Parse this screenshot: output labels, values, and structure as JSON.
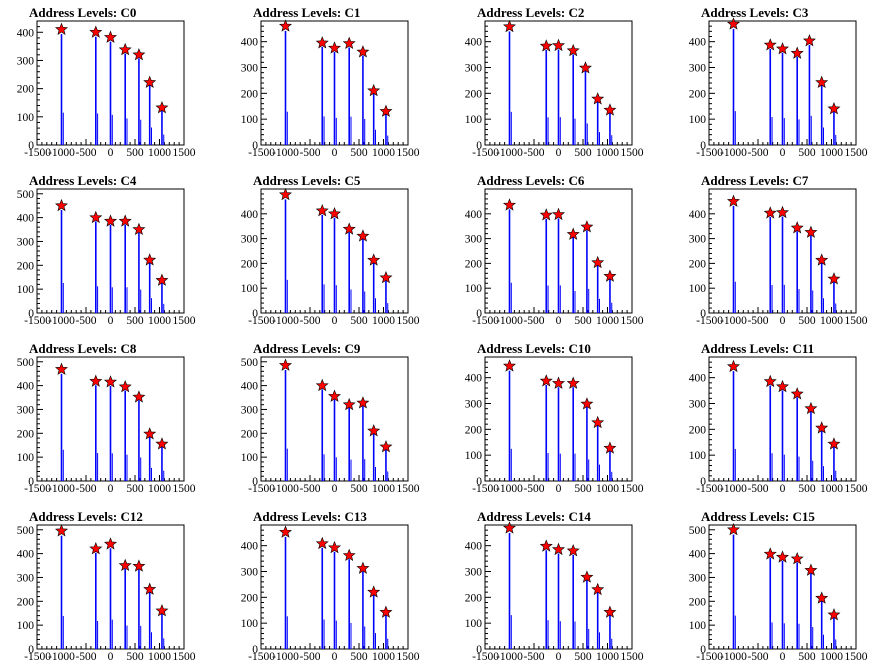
{
  "chart_data": [
    {
      "title": "Address Levels: C0",
      "type": "bar",
      "xlim": [
        -1500,
        1500
      ],
      "ylim": [
        0,
        440
      ],
      "xticks": [
        "-1500",
        "-1000",
        "-500",
        "0",
        "500",
        "1000",
        "1500"
      ],
      "yticks": [
        "0",
        "100",
        "200",
        "300",
        "400"
      ],
      "peaks": [
        {
          "x": -1000,
          "y": 410
        },
        {
          "x": -300,
          "y": 400
        },
        {
          "x": 0,
          "y": 382
        },
        {
          "x": 300,
          "y": 338
        },
        {
          "x": 580,
          "y": 320
        },
        {
          "x": 800,
          "y": 222
        },
        {
          "x": 1050,
          "y": 132
        }
      ]
    },
    {
      "title": "Address Levels: C1",
      "type": "bar",
      "xlim": [
        -1500,
        1500
      ],
      "ylim": [
        0,
        480
      ],
      "xticks": [
        "-1500",
        "-1000",
        "-500",
        "0",
        "500",
        "1000",
        "1500"
      ],
      "yticks": [
        "0",
        "100",
        "200",
        "300",
        "400"
      ],
      "peaks": [
        {
          "x": -1000,
          "y": 460
        },
        {
          "x": -250,
          "y": 395
        },
        {
          "x": 0,
          "y": 375
        },
        {
          "x": 300,
          "y": 393
        },
        {
          "x": 580,
          "y": 360
        },
        {
          "x": 800,
          "y": 210
        },
        {
          "x": 1050,
          "y": 130
        }
      ]
    },
    {
      "title": "Address Levels: C2",
      "type": "bar",
      "xlim": [
        -1500,
        1500
      ],
      "ylim": [
        0,
        480
      ],
      "xticks": [
        "-1500",
        "-1000",
        "-500",
        "0",
        "500",
        "1000",
        "1500"
      ],
      "yticks": [
        "0",
        "100",
        "200",
        "300",
        "400"
      ],
      "peaks": [
        {
          "x": -1000,
          "y": 458
        },
        {
          "x": -250,
          "y": 383
        },
        {
          "x": 0,
          "y": 385
        },
        {
          "x": 300,
          "y": 365
        },
        {
          "x": 550,
          "y": 298
        },
        {
          "x": 800,
          "y": 178
        },
        {
          "x": 1050,
          "y": 135
        }
      ]
    },
    {
      "title": "Address Levels: C3",
      "type": "bar",
      "xlim": [
        -1500,
        1500
      ],
      "ylim": [
        0,
        480
      ],
      "xticks": [
        "-1500",
        "-1000",
        "-500",
        "0",
        "500",
        "1000",
        "1500"
      ],
      "yticks": [
        "0",
        "100",
        "200",
        "300",
        "400"
      ],
      "peaks": [
        {
          "x": -1000,
          "y": 468
        },
        {
          "x": -250,
          "y": 387
        },
        {
          "x": 0,
          "y": 372
        },
        {
          "x": 300,
          "y": 355
        },
        {
          "x": 550,
          "y": 403
        },
        {
          "x": 800,
          "y": 242
        },
        {
          "x": 1050,
          "y": 140
        }
      ]
    },
    {
      "title": "Address Levels: C4",
      "type": "bar",
      "xlim": [
        -1500,
        1500
      ],
      "ylim": [
        0,
        520
      ],
      "xticks": [
        "-1500",
        "-1000",
        "-500",
        "0",
        "500",
        "1000",
        "1500"
      ],
      "yticks": [
        "0",
        "100",
        "200",
        "300",
        "400",
        "500"
      ],
      "peaks": [
        {
          "x": -1000,
          "y": 450
        },
        {
          "x": -300,
          "y": 400
        },
        {
          "x": 0,
          "y": 385
        },
        {
          "x": 300,
          "y": 385
        },
        {
          "x": 580,
          "y": 350
        },
        {
          "x": 800,
          "y": 222
        },
        {
          "x": 1050,
          "y": 137
        }
      ]
    },
    {
      "title": "Address Levels: C5",
      "type": "bar",
      "xlim": [
        -1500,
        1500
      ],
      "ylim": [
        0,
        500
      ],
      "xticks": [
        "-1500",
        "-1000",
        "-500",
        "0",
        "500",
        "1000",
        "1500"
      ],
      "yticks": [
        "0",
        "100",
        "200",
        "300",
        "400"
      ],
      "peaks": [
        {
          "x": -1000,
          "y": 477
        },
        {
          "x": -250,
          "y": 412
        },
        {
          "x": 0,
          "y": 400
        },
        {
          "x": 300,
          "y": 338
        },
        {
          "x": 580,
          "y": 310
        },
        {
          "x": 800,
          "y": 213
        },
        {
          "x": 1050,
          "y": 142
        }
      ]
    },
    {
      "title": "Address Levels: C6",
      "type": "bar",
      "xlim": [
        -1500,
        1500
      ],
      "ylim": [
        0,
        500
      ],
      "xticks": [
        "-1500",
        "-1000",
        "-500",
        "0",
        "500",
        "1000",
        "1500"
      ],
      "yticks": [
        "0",
        "100",
        "200",
        "300",
        "400"
      ],
      "peaks": [
        {
          "x": -1000,
          "y": 435
        },
        {
          "x": -250,
          "y": 395
        },
        {
          "x": 0,
          "y": 397
        },
        {
          "x": 300,
          "y": 317
        },
        {
          "x": 580,
          "y": 347
        },
        {
          "x": 800,
          "y": 203
        },
        {
          "x": 1050,
          "y": 148
        }
      ]
    },
    {
      "title": "Address Levels: C7",
      "type": "bar",
      "xlim": [
        -1500,
        1500
      ],
      "ylim": [
        0,
        500
      ],
      "xticks": [
        "-1500",
        "-1000",
        "-500",
        "0",
        "500",
        "1000",
        "1500"
      ],
      "yticks": [
        "0",
        "100",
        "200",
        "300",
        "400"
      ],
      "peaks": [
        {
          "x": -1000,
          "y": 450
        },
        {
          "x": -250,
          "y": 403
        },
        {
          "x": 0,
          "y": 405
        },
        {
          "x": 300,
          "y": 343
        },
        {
          "x": 580,
          "y": 325
        },
        {
          "x": 800,
          "y": 213
        },
        {
          "x": 1050,
          "y": 137
        }
      ]
    },
    {
      "title": "Address Levels: C8",
      "type": "bar",
      "xlim": [
        -1500,
        1500
      ],
      "ylim": [
        0,
        520
      ],
      "xticks": [
        "-1500",
        "-1000",
        "-500",
        "0",
        "500",
        "1000",
        "1500"
      ],
      "yticks": [
        "0",
        "100",
        "200",
        "300",
        "400",
        "500"
      ],
      "peaks": [
        {
          "x": -1000,
          "y": 468
        },
        {
          "x": -300,
          "y": 418
        },
        {
          "x": 0,
          "y": 415
        },
        {
          "x": 300,
          "y": 395
        },
        {
          "x": 580,
          "y": 352
        },
        {
          "x": 800,
          "y": 197
        },
        {
          "x": 1050,
          "y": 155
        }
      ]
    },
    {
      "title": "Address Levels: C9",
      "type": "bar",
      "xlim": [
        -1500,
        1500
      ],
      "ylim": [
        0,
        520
      ],
      "xticks": [
        "-1500",
        "-1000",
        "-500",
        "0",
        "500",
        "1000",
        "1500"
      ],
      "yticks": [
        "0",
        "100",
        "200",
        "300",
        "400",
        "500"
      ],
      "peaks": [
        {
          "x": -1000,
          "y": 485
        },
        {
          "x": -250,
          "y": 400
        },
        {
          "x": 0,
          "y": 355
        },
        {
          "x": 300,
          "y": 320
        },
        {
          "x": 580,
          "y": 327
        },
        {
          "x": 800,
          "y": 210
        },
        {
          "x": 1050,
          "y": 143
        }
      ]
    },
    {
      "title": "Address Levels: C10",
      "type": "bar",
      "xlim": [
        -1500,
        1500
      ],
      "ylim": [
        0,
        480
      ],
      "xticks": [
        "-1500",
        "-1000",
        "-500",
        "0",
        "500",
        "1000",
        "1500"
      ],
      "yticks": [
        "0",
        "100",
        "200",
        "300",
        "400"
      ],
      "peaks": [
        {
          "x": -1000,
          "y": 445
        },
        {
          "x": -250,
          "y": 387
        },
        {
          "x": 0,
          "y": 378
        },
        {
          "x": 300,
          "y": 378
        },
        {
          "x": 580,
          "y": 298
        },
        {
          "x": 800,
          "y": 226
        },
        {
          "x": 1050,
          "y": 127
        }
      ]
    },
    {
      "title": "Address Levels: C11",
      "type": "bar",
      "xlim": [
        -1500,
        1500
      ],
      "ylim": [
        0,
        480
      ],
      "xticks": [
        "-1500",
        "-1000",
        "-500",
        "0",
        "500",
        "1000",
        "1500"
      ],
      "yticks": [
        "0",
        "100",
        "200",
        "300",
        "400"
      ],
      "peaks": [
        {
          "x": -1000,
          "y": 443
        },
        {
          "x": -250,
          "y": 385
        },
        {
          "x": 0,
          "y": 365
        },
        {
          "x": 300,
          "y": 337
        },
        {
          "x": 580,
          "y": 280
        },
        {
          "x": 800,
          "y": 205
        },
        {
          "x": 1050,
          "y": 143
        }
      ]
    },
    {
      "title": "Address Levels: C12",
      "type": "bar",
      "xlim": [
        -1500,
        1500
      ],
      "ylim": [
        0,
        520
      ],
      "xticks": [
        "-1500",
        "-1000",
        "-500",
        "0",
        "500",
        "1000",
        "1500"
      ],
      "yticks": [
        "0",
        "100",
        "200",
        "300",
        "400",
        "500"
      ],
      "peaks": [
        {
          "x": -1000,
          "y": 495
        },
        {
          "x": -300,
          "y": 420
        },
        {
          "x": 0,
          "y": 440
        },
        {
          "x": 300,
          "y": 350
        },
        {
          "x": 580,
          "y": 347
        },
        {
          "x": 800,
          "y": 250
        },
        {
          "x": 1050,
          "y": 160
        }
      ]
    },
    {
      "title": "Address Levels: C13",
      "type": "bar",
      "xlim": [
        -1500,
        1500
      ],
      "ylim": [
        0,
        480
      ],
      "xticks": [
        "-1500",
        "-1000",
        "-500",
        "0",
        "500",
        "1000",
        "1500"
      ],
      "yticks": [
        "0",
        "100",
        "200",
        "300",
        "400"
      ],
      "peaks": [
        {
          "x": -1000,
          "y": 452
        },
        {
          "x": -250,
          "y": 408
        },
        {
          "x": 0,
          "y": 392
        },
        {
          "x": 300,
          "y": 362
        },
        {
          "x": 580,
          "y": 312
        },
        {
          "x": 800,
          "y": 220
        },
        {
          "x": 1050,
          "y": 142
        }
      ]
    },
    {
      "title": "Address Levels: C14",
      "type": "bar",
      "xlim": [
        -1500,
        1500
      ],
      "ylim": [
        0,
        480
      ],
      "xticks": [
        "-1500",
        "-1000",
        "-500",
        "0",
        "500",
        "1000",
        "1500"
      ],
      "yticks": [
        "0",
        "100",
        "200",
        "300",
        "400"
      ],
      "peaks": [
        {
          "x": -1000,
          "y": 468
        },
        {
          "x": -250,
          "y": 398
        },
        {
          "x": 0,
          "y": 385
        },
        {
          "x": 300,
          "y": 380
        },
        {
          "x": 580,
          "y": 278
        },
        {
          "x": 800,
          "y": 230
        },
        {
          "x": 1050,
          "y": 142
        }
      ]
    },
    {
      "title": "Address Levels: C15",
      "type": "bar",
      "xlim": [
        -1500,
        1500
      ],
      "ylim": [
        0,
        520
      ],
      "xticks": [
        "-1500",
        "-1000",
        "-500",
        "0",
        "500",
        "1000",
        "1500"
      ],
      "yticks": [
        "0",
        "100",
        "200",
        "300",
        "400",
        "500"
      ],
      "peaks": [
        {
          "x": -1000,
          "y": 500
        },
        {
          "x": -250,
          "y": 398
        },
        {
          "x": 0,
          "y": 385
        },
        {
          "x": 300,
          "y": 378
        },
        {
          "x": 580,
          "y": 330
        },
        {
          "x": 800,
          "y": 213
        },
        {
          "x": 1050,
          "y": 143
        }
      ]
    }
  ],
  "colors": {
    "bars": "#0000ff",
    "marker_fill": "#ff0000",
    "marker_stroke": "#000000",
    "axis": "#000000",
    "background": "#ffffff"
  }
}
